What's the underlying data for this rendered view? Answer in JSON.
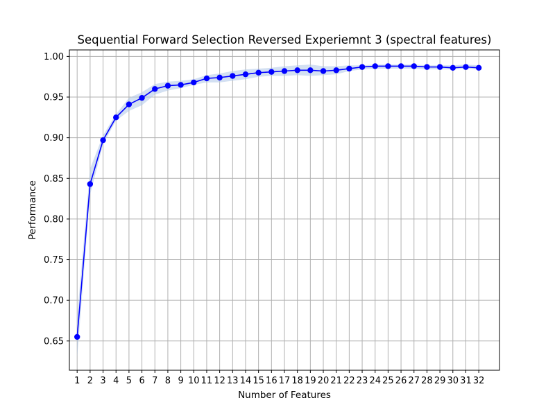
{
  "chart_data": {
    "type": "line",
    "title": "Sequential Forward Selection Reversed Experiemnt 3 (spectral features)",
    "xlabel": "Number of Features",
    "ylabel": "Performance",
    "x": [
      1,
      2,
      3,
      4,
      5,
      6,
      7,
      8,
      9,
      10,
      11,
      12,
      13,
      14,
      15,
      16,
      17,
      18,
      19,
      20,
      21,
      22,
      23,
      24,
      25,
      26,
      27,
      28,
      29,
      30,
      31,
      32
    ],
    "x_tick_labels": [
      "1",
      "2",
      "3",
      "4",
      "5",
      "6",
      "7",
      "8",
      "9",
      "10",
      "11",
      "12",
      "13",
      "14",
      "15",
      "16",
      "17",
      "18",
      "19",
      "20",
      "21",
      "22",
      "23",
      "24",
      "25",
      "26",
      "27",
      "28",
      "29",
      "30",
      "31",
      "32"
    ],
    "xlim": [
      0.4,
      33.6
    ],
    "ylim": [
      0.614,
      1.008
    ],
    "y_ticks": [
      0.65,
      0.7,
      0.75,
      0.8,
      0.85,
      0.9,
      0.95,
      1.0
    ],
    "y_tick_labels": [
      "0.65",
      "0.70",
      "0.75",
      "0.80",
      "0.85",
      "0.90",
      "0.95",
      "1.00"
    ],
    "grid": true,
    "series": [
      {
        "values": [
          0.655,
          0.843,
          0.897,
          0.925,
          0.941,
          0.949,
          0.96,
          0.964,
          0.965,
          0.968,
          0.973,
          0.974,
          0.976,
          0.978,
          0.98,
          0.981,
          0.982,
          0.983,
          0.983,
          0.982,
          0.983,
          0.985,
          0.987,
          0.988,
          0.988,
          0.988,
          0.988,
          0.987,
          0.987,
          0.986,
          0.987,
          0.986
        ],
        "band_lower": [
          0.63,
          0.83,
          0.892,
          0.921,
          0.933,
          0.94,
          0.953,
          0.958,
          0.961,
          0.965,
          0.968,
          0.968,
          0.97,
          0.972,
          0.975,
          0.976,
          0.976,
          0.977,
          0.976,
          0.977,
          0.978,
          0.982,
          0.984,
          0.985,
          0.985,
          0.985,
          0.985,
          0.984,
          0.984,
          0.984,
          0.985,
          0.984
        ],
        "band_upper": [
          0.68,
          0.862,
          0.903,
          0.929,
          0.949,
          0.956,
          0.966,
          0.969,
          0.97,
          0.972,
          0.977,
          0.979,
          0.982,
          0.984,
          0.985,
          0.986,
          0.988,
          0.989,
          0.99,
          0.988,
          0.988,
          0.989,
          0.989,
          0.99,
          0.99,
          0.99,
          0.99,
          0.989,
          0.989,
          0.989,
          0.99,
          0.989
        ]
      }
    ],
    "colors": {
      "line": "#0000ff",
      "marker": "#0000ff",
      "band": "#aec7e8",
      "grid": "#b0b0b0"
    }
  }
}
